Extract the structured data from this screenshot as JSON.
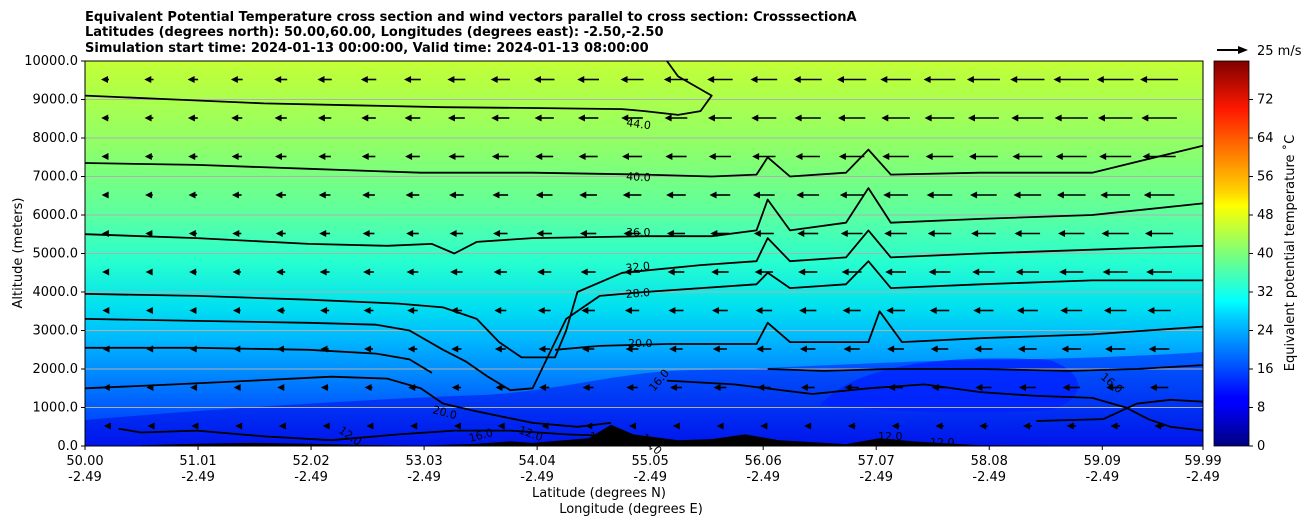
{
  "chart_data": {
    "type": "heatmap",
    "title_lines": [
      "Equivalent Potential Temperature cross section and wind vectors parallel to cross section: CrosssectionA",
      "Latitudes (degrees north): 50.00,60.00, Longitudes (degrees east): -2.50,-2.50",
      "Simulation start time: 2024-01-13 00:00:00, Valid time: 2024-01-13 08:00:00"
    ],
    "ylabel": "Altitude (meters)",
    "xlabel_lines": [
      "Latitude (degrees N)",
      "Longitude (degrees E)"
    ],
    "ylim": [
      0,
      10000
    ],
    "y_ticks": [
      "0.0",
      "1000.0",
      "2000.0",
      "3000.0",
      "4000.0",
      "5000.0",
      "6000.0",
      "7000.0",
      "8000.0",
      "9000.0",
      "10000.0"
    ],
    "x_tick_values": [
      50.0,
      51.01,
      52.02,
      53.03,
      54.04,
      55.05,
      56.06,
      57.07,
      58.08,
      59.09,
      59.99
    ],
    "x_ticks_lat": [
      "50.00",
      "51.01",
      "52.02",
      "53.03",
      "54.04",
      "55.05",
      "56.06",
      "57.07",
      "58.08",
      "59.09",
      "59.99"
    ],
    "x_ticks_lon": [
      "-2.49",
      "-2.49",
      "-2.49",
      "-2.49",
      "-2.49",
      "-2.49",
      "-2.49",
      "-2.49",
      "-2.49",
      "-2.49",
      "-2.49"
    ],
    "xlim": [
      50.0,
      59.99
    ],
    "grid": "horizontal",
    "colorbar": {
      "label": "Equivalent potential temperature ˚C",
      "ticks": [
        "0",
        "8",
        "16",
        "24",
        "32",
        "40",
        "48",
        "56",
        "64",
        "72"
      ],
      "range": [
        0,
        80
      ],
      "colormap": "jet"
    },
    "quiver_key": "25 m/s",
    "contour_labels": [
      "44.0",
      "40.0",
      "36.0",
      "32.0",
      "28.0",
      "20.0",
      "16.0",
      "16.0",
      "20.0",
      "12.0",
      "16.0",
      "12.0",
      "12.0",
      "12.0",
      "12.0",
      "12.0"
    ],
    "contours": [
      {
        "level": 44,
        "points": [
          [
            50.0,
            9100
          ],
          [
            50.8,
            9000
          ],
          [
            51.6,
            8900
          ],
          [
            52.4,
            8850
          ],
          [
            53.2,
            8800
          ],
          [
            54.0,
            8780
          ],
          [
            54.8,
            8750
          ],
          [
            55.0,
            8700
          ],
          [
            55.3,
            8600
          ],
          [
            55.5,
            8700
          ],
          [
            55.6,
            9100
          ],
          [
            55.3,
            9600
          ],
          [
            55.2,
            10000
          ]
        ]
      },
      {
        "level": 40,
        "points": [
          [
            50.0,
            7350
          ],
          [
            51.0,
            7300
          ],
          [
            52.0,
            7200
          ],
          [
            53.0,
            7100
          ],
          [
            54.0,
            7100
          ],
          [
            55.0,
            7050
          ],
          [
            55.6,
            7000
          ],
          [
            56.0,
            7050
          ],
          [
            56.1,
            7500
          ],
          [
            56.3,
            7000
          ],
          [
            56.8,
            7100
          ],
          [
            57.0,
            7700
          ],
          [
            57.2,
            7050
          ],
          [
            58.0,
            7100
          ],
          [
            59.0,
            7100
          ],
          [
            59.99,
            7800
          ]
        ]
      },
      {
        "level": 36,
        "points": [
          [
            50.0,
            5500
          ],
          [
            51.0,
            5400
          ],
          [
            52.0,
            5250
          ],
          [
            52.7,
            5200
          ],
          [
            53.1,
            5250
          ],
          [
            53.3,
            5000
          ],
          [
            53.5,
            5300
          ],
          [
            54.0,
            5400
          ],
          [
            55.0,
            5450
          ],
          [
            55.6,
            5450
          ],
          [
            56.0,
            5600
          ],
          [
            56.1,
            6400
          ],
          [
            56.3,
            5600
          ],
          [
            56.8,
            5800
          ],
          [
            57.0,
            6700
          ],
          [
            57.2,
            5800
          ],
          [
            58.0,
            5900
          ],
          [
            59.0,
            6000
          ],
          [
            59.99,
            6300
          ]
        ]
      },
      {
        "level": 32,
        "points": [
          [
            50.0,
            3950
          ],
          [
            51.0,
            3900
          ],
          [
            52.0,
            3800
          ],
          [
            52.8,
            3700
          ],
          [
            53.2,
            3600
          ],
          [
            53.5,
            3300
          ],
          [
            53.7,
            2700
          ],
          [
            53.9,
            2300
          ],
          [
            54.2,
            2300
          ],
          [
            54.3,
            3000
          ],
          [
            54.4,
            4000
          ],
          [
            54.8,
            4500
          ],
          [
            55.5,
            4700
          ],
          [
            56.0,
            4800
          ],
          [
            56.1,
            5400
          ],
          [
            56.3,
            4800
          ],
          [
            56.8,
            4900
          ],
          [
            57.0,
            5600
          ],
          [
            57.2,
            4900
          ],
          [
            58.0,
            5000
          ],
          [
            59.0,
            5100
          ],
          [
            59.99,
            5200
          ]
        ]
      },
      {
        "level": 28,
        "points": [
          [
            50.0,
            3300
          ],
          [
            51.0,
            3250
          ],
          [
            52.0,
            3200
          ],
          [
            52.6,
            3150
          ],
          [
            52.9,
            3000
          ],
          [
            53.2,
            2500
          ],
          [
            53.4,
            2200
          ],
          [
            53.6,
            1800
          ],
          [
            53.8,
            1450
          ],
          [
            54.0,
            1500
          ],
          [
            54.1,
            2100
          ],
          [
            54.3,
            3300
          ],
          [
            54.6,
            3900
          ],
          [
            55.0,
            4000
          ],
          [
            56.0,
            4200
          ],
          [
            56.1,
            4500
          ],
          [
            56.3,
            4100
          ],
          [
            56.8,
            4200
          ],
          [
            57.0,
            4800
          ],
          [
            57.2,
            4100
          ],
          [
            58.0,
            4200
          ],
          [
            59.0,
            4300
          ],
          [
            59.99,
            4300
          ]
        ]
      },
      {
        "level": 20,
        "points": [
          [
            50.0,
            2550
          ],
          [
            51.0,
            2550
          ],
          [
            52.0,
            2500
          ],
          [
            52.6,
            2400
          ],
          [
            52.9,
            2250
          ],
          [
            53.1,
            1900
          ]
        ]
      },
      {
        "level": 20,
        "points": [
          [
            54.2,
            2500
          ],
          [
            54.6,
            2600
          ],
          [
            55.2,
            2650
          ],
          [
            56.0,
            2650
          ],
          [
            56.1,
            3200
          ],
          [
            56.3,
            2700
          ],
          [
            57.0,
            2700
          ],
          [
            57.1,
            3500
          ],
          [
            57.3,
            2700
          ],
          [
            58.0,
            2800
          ],
          [
            59.0,
            2900
          ],
          [
            59.99,
            3100
          ]
        ]
      },
      {
        "level": 16,
        "points": [
          [
            50.0,
            1500
          ],
          [
            50.8,
            1600
          ],
          [
            51.5,
            1700
          ],
          [
            52.2,
            1800
          ],
          [
            52.7,
            1750
          ],
          [
            53.0,
            1500
          ],
          [
            53.2,
            1100
          ],
          [
            53.5,
            900
          ],
          [
            54.0,
            600
          ],
          [
            54.4,
            500
          ],
          [
            54.7,
            600
          ]
        ]
      },
      {
        "level": 16,
        "points": [
          [
            56.1,
            2000
          ],
          [
            56.6,
            1950
          ],
          [
            57.2,
            2000
          ],
          [
            58.0,
            2000
          ],
          [
            58.8,
            1950
          ],
          [
            59.4,
            2000
          ],
          [
            59.99,
            2100
          ]
        ]
      },
      {
        "level": 12,
        "points": [
          [
            50.3,
            450
          ],
          [
            50.5,
            350
          ],
          [
            51.0,
            400
          ],
          [
            51.6,
            250
          ],
          [
            52.2,
            150
          ],
          [
            52.8,
            300
          ],
          [
            53.3,
            400
          ],
          [
            53.8,
            400
          ],
          [
            54.3,
            300
          ],
          [
            54.8,
            250
          ]
        ]
      },
      {
        "level": 12,
        "points": [
          [
            55.2,
            1700
          ],
          [
            55.8,
            1600
          ],
          [
            56.5,
            1350
          ],
          [
            57.0,
            1500
          ],
          [
            57.5,
            1600
          ],
          [
            58.0,
            1400
          ],
          [
            58.5,
            1300
          ],
          [
            59.0,
            1250
          ],
          [
            59.3,
            1000
          ],
          [
            59.5,
            700
          ],
          [
            59.7,
            500
          ],
          [
            59.99,
            400
          ]
        ]
      },
      {
        "level": 12,
        "points": [
          [
            58.5,
            650
          ],
          [
            59.1,
            700
          ],
          [
            59.4,
            1100
          ],
          [
            59.7,
            1200
          ],
          [
            59.99,
            1150
          ]
        ]
      }
    ],
    "terrain": [
      [
        50.5,
        20
      ],
      [
        51.0,
        60
      ],
      [
        51.5,
        80
      ],
      [
        52.0,
        60
      ],
      [
        52.4,
        30
      ],
      [
        53.0,
        10
      ],
      [
        53.5,
        60
      ],
      [
        53.8,
        120
      ],
      [
        54.0,
        80
      ],
      [
        54.5,
        200
      ],
      [
        54.7,
        550
      ],
      [
        54.9,
        300
      ],
      [
        55.3,
        150
      ],
      [
        55.6,
        180
      ],
      [
        55.9,
        300
      ],
      [
        56.2,
        150
      ],
      [
        56.8,
        50
      ],
      [
        57.1,
        200
      ],
      [
        57.4,
        120
      ],
      [
        58.0,
        20
      ],
      [
        59.99,
        0
      ]
    ]
  }
}
